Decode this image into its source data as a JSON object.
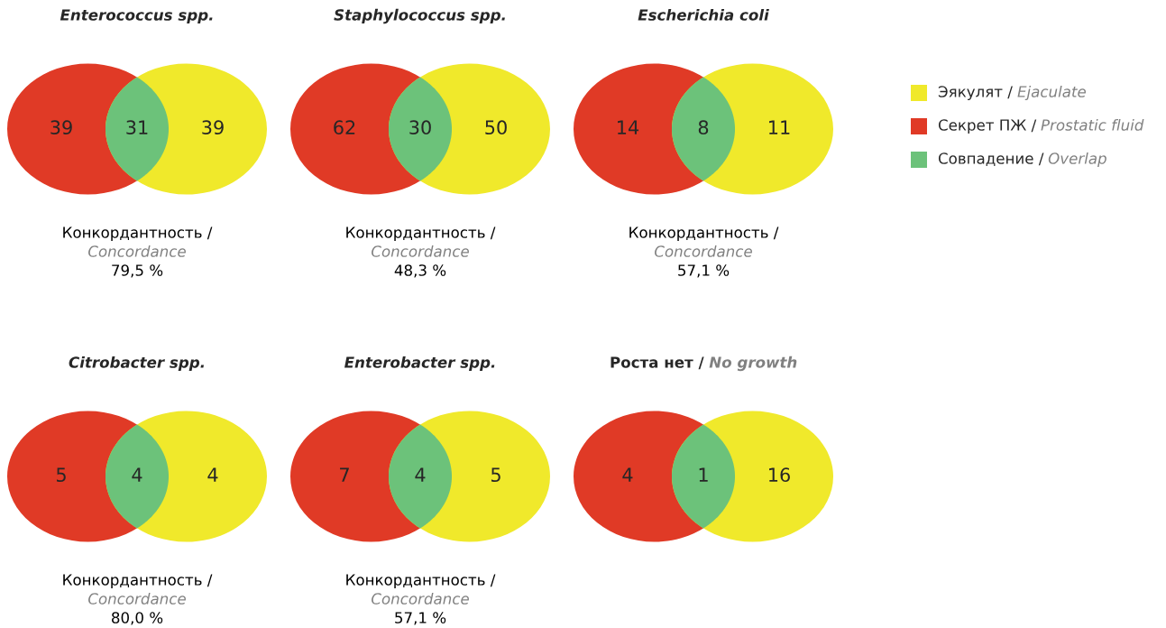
{
  "chart_data": [
    {
      "type": "other",
      "title": "Enterococcus spp.",
      "values": [
        39,
        31,
        39
      ],
      "data_labels": true,
      "colors": [
        "#e03a26",
        "#6cc27a",
        "#f0e92b"
      ],
      "annotations": [
        "Конкордантность /",
        "Concordance",
        "79,5 %"
      ]
    },
    {
      "type": "other",
      "title": "Staphylococcus spp.",
      "values": [
        62,
        30,
        50
      ],
      "data_labels": true,
      "colors": [
        "#e03a26",
        "#6cc27a",
        "#f0e92b"
      ],
      "annotations": [
        "Конкордантность /",
        "Concordance",
        "48,3 %"
      ]
    },
    {
      "type": "other",
      "title": "Escherichia coli",
      "values": [
        14,
        8,
        11
      ],
      "data_labels": true,
      "colors": [
        "#e03a26",
        "#6cc27a",
        "#f0e92b"
      ],
      "annotations": [
        "Конкордантность /",
        "Concordance",
        "57,1 %"
      ]
    },
    {
      "type": "other",
      "title": "Citrobacter spp.",
      "values": [
        5,
        4,
        4
      ],
      "data_labels": true,
      "colors": [
        "#e03a26",
        "#6cc27a",
        "#f0e92b"
      ],
      "annotations": [
        "Конкордантность /",
        "Concordance",
        "80,0 %"
      ]
    },
    {
      "type": "other",
      "title": "Enterobacter spp.",
      "values": [
        7,
        4,
        5
      ],
      "data_labels": true,
      "colors": [
        "#e03a26",
        "#6cc27a",
        "#f0e92b"
      ],
      "annotations": [
        "Конкордантность /",
        "Concordance",
        "57,1 %"
      ]
    },
    {
      "type": "other",
      "title": "Роста нет / No growth",
      "values": [
        4,
        1,
        16
      ],
      "data_labels": true,
      "colors": [
        "#e03a26",
        "#6cc27a",
        "#f0e92b"
      ]
    },
    {
      "type": "other",
      "categories": [
        "Эякулят / Ejaculate",
        "Секрет ПЖ / Prostatic fluid",
        "Совпадение / Overlap"
      ],
      "colors": [
        "#f0e92b",
        "#e03a26",
        "#6cc27a"
      ]
    }
  ]
}
